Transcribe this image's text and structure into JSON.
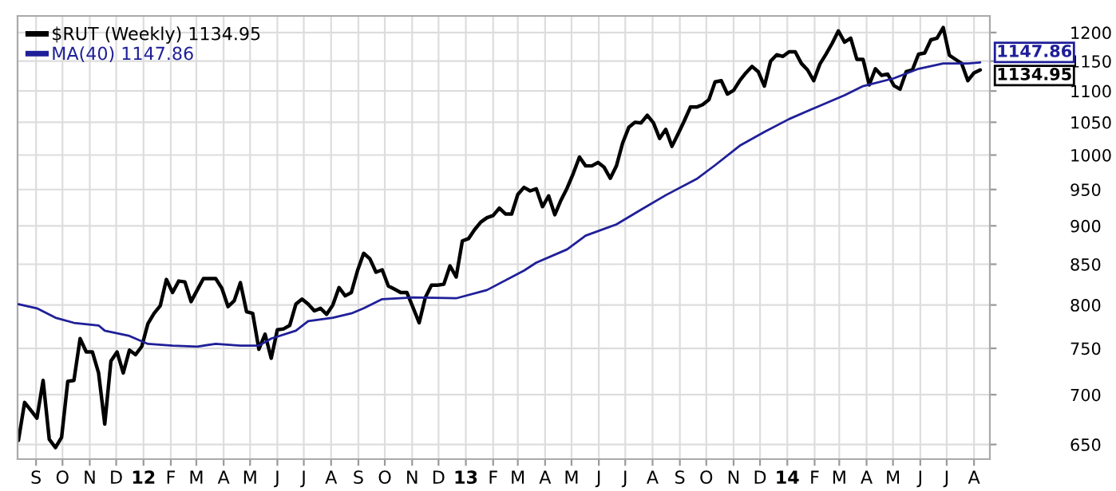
{
  "chart_data": {
    "type": "line",
    "log": "y",
    "grid": true,
    "legend": "top left",
    "ylim": [
      636,
      1230
    ],
    "yticks": [
      650,
      700,
      750,
      800,
      850,
      900,
      950,
      1000,
      1050,
      1100,
      1150,
      1200
    ],
    "xlim": [
      "2011-08-11",
      "2014-08-19"
    ],
    "xticks": [
      {
        "value": "2011-09-01",
        "label": "S"
      },
      {
        "value": "2011-10-01",
        "label": "O"
      },
      {
        "value": "2011-11-01",
        "label": "N"
      },
      {
        "value": "2011-12-01",
        "label": "D"
      },
      {
        "value": "2012-01-01",
        "label": "12"
      },
      {
        "value": "2012-02-01",
        "label": "F"
      },
      {
        "value": "2012-03-01",
        "label": "M"
      },
      {
        "value": "2012-04-01",
        "label": "A"
      },
      {
        "value": "2012-05-01",
        "label": "M"
      },
      {
        "value": "2012-06-01",
        "label": "J"
      },
      {
        "value": "2012-07-01",
        "label": "J"
      },
      {
        "value": "2012-08-01",
        "label": "A"
      },
      {
        "value": "2012-09-01",
        "label": "S"
      },
      {
        "value": "2012-10-01",
        "label": "O"
      },
      {
        "value": "2012-11-01",
        "label": "N"
      },
      {
        "value": "2012-12-01",
        "label": "D"
      },
      {
        "value": "2013-01-01",
        "label": "13"
      },
      {
        "value": "2013-02-01",
        "label": "F"
      },
      {
        "value": "2013-03-01",
        "label": "M"
      },
      {
        "value": "2013-04-01",
        "label": "A"
      },
      {
        "value": "2013-05-01",
        "label": "M"
      },
      {
        "value": "2013-06-01",
        "label": "J"
      },
      {
        "value": "2013-07-01",
        "label": "J"
      },
      {
        "value": "2013-08-01",
        "label": "A"
      },
      {
        "value": "2013-09-01",
        "label": "S"
      },
      {
        "value": "2013-10-01",
        "label": "O"
      },
      {
        "value": "2013-11-01",
        "label": "N"
      },
      {
        "value": "2013-12-01",
        "label": "D"
      },
      {
        "value": "2014-01-01",
        "label": "14"
      },
      {
        "value": "2014-02-01",
        "label": "F"
      },
      {
        "value": "2014-03-01",
        "label": "M"
      },
      {
        "value": "2014-04-01",
        "label": "A"
      },
      {
        "value": "2014-05-01",
        "label": "M"
      },
      {
        "value": "2014-06-01",
        "label": "J"
      },
      {
        "value": "2014-07-01",
        "label": "J"
      },
      {
        "value": "2014-08-01",
        "label": "A"
      }
    ],
    "annotations": [
      {
        "text": "1147.86",
        "x": "2014-08-08",
        "y": 1147.86
      },
      {
        "text": "1134.95",
        "x": "2014-08-08",
        "y": 1134.95
      }
    ],
    "series": [
      {
        "name": "$RUT (Weekly) 1134.95",
        "color": "#000000",
        "x": [
          "2011-08-12",
          "2011-08-19",
          "2011-08-26",
          "2011-09-02",
          "2011-09-09",
          "2011-09-16",
          "2011-09-23",
          "2011-09-30",
          "2011-10-07",
          "2011-10-14",
          "2011-10-21",
          "2011-10-28",
          "2011-11-04",
          "2011-11-11",
          "2011-11-18",
          "2011-11-25",
          "2011-12-02",
          "2011-12-09",
          "2011-12-16",
          "2011-12-23",
          "2011-12-30",
          "2012-01-06",
          "2012-01-13",
          "2012-01-20",
          "2012-01-27",
          "2012-02-03",
          "2012-02-10",
          "2012-02-17",
          "2012-02-24",
          "2012-03-02",
          "2012-03-09",
          "2012-03-16",
          "2012-03-23",
          "2012-03-30",
          "2012-04-06",
          "2012-04-13",
          "2012-04-20",
          "2012-04-27",
          "2012-05-04",
          "2012-05-11",
          "2012-05-18",
          "2012-05-25",
          "2012-06-01",
          "2012-06-08",
          "2012-06-15",
          "2012-06-22",
          "2012-06-29",
          "2012-07-06",
          "2012-07-13",
          "2012-07-20",
          "2012-07-27",
          "2012-08-03",
          "2012-08-10",
          "2012-08-17",
          "2012-08-24",
          "2012-08-31",
          "2012-09-07",
          "2012-09-14",
          "2012-09-21",
          "2012-09-28",
          "2012-10-05",
          "2012-10-12",
          "2012-10-19",
          "2012-10-26",
          "2012-11-02",
          "2012-11-09",
          "2012-11-16",
          "2012-11-23",
          "2012-11-30",
          "2012-12-07",
          "2012-12-14",
          "2012-12-21",
          "2012-12-28",
          "2013-01-04",
          "2013-01-11",
          "2013-01-18",
          "2013-01-25",
          "2013-02-01",
          "2013-02-08",
          "2013-02-15",
          "2013-02-22",
          "2013-03-01",
          "2013-03-08",
          "2013-03-15",
          "2013-03-22",
          "2013-03-29",
          "2013-04-05",
          "2013-04-12",
          "2013-04-19",
          "2013-04-26",
          "2013-05-03",
          "2013-05-10",
          "2013-05-17",
          "2013-05-24",
          "2013-05-31",
          "2013-06-07",
          "2013-06-14",
          "2013-06-21",
          "2013-06-28",
          "2013-07-05",
          "2013-07-12",
          "2013-07-19",
          "2013-07-26",
          "2013-08-02",
          "2013-08-09",
          "2013-08-16",
          "2013-08-23",
          "2013-08-30",
          "2013-09-06",
          "2013-09-13",
          "2013-09-20",
          "2013-09-27",
          "2013-10-04",
          "2013-10-11",
          "2013-10-18",
          "2013-10-25",
          "2013-11-01",
          "2013-11-08",
          "2013-11-15",
          "2013-11-22",
          "2013-11-29",
          "2013-12-06",
          "2013-12-13",
          "2013-12-20",
          "2013-12-27",
          "2014-01-03",
          "2014-01-10",
          "2014-01-17",
          "2014-01-24",
          "2014-01-31",
          "2014-02-07",
          "2014-02-14",
          "2014-02-21",
          "2014-02-28",
          "2014-03-07",
          "2014-03-14",
          "2014-03-21",
          "2014-03-28",
          "2014-04-04",
          "2014-04-11",
          "2014-04-18",
          "2014-04-25",
          "2014-05-02",
          "2014-05-09",
          "2014-05-16",
          "2014-05-23",
          "2014-05-30",
          "2014-06-06",
          "2014-06-13",
          "2014-06-20",
          "2014-06-27",
          "2014-07-04",
          "2014-07-11",
          "2014-07-18",
          "2014-07-25",
          "2014-08-01",
          "2014-08-08"
        ],
        "values": [
          654,
          692,
          684,
          676,
          715,
          655,
          647,
          657,
          714,
          715,
          761,
          746,
          746,
          723,
          670,
          736,
          746,
          723,
          748,
          743,
          752,
          778,
          790,
          799,
          831,
          815,
          829,
          828,
          804,
          818,
          832,
          832,
          832,
          820,
          798,
          805,
          827,
          792,
          790,
          749,
          766,
          739,
          771,
          772,
          776,
          801,
          807,
          801,
          793,
          796,
          789,
          800,
          821,
          811,
          815,
          842,
          864,
          857,
          840,
          843,
          823,
          819,
          815,
          815,
          797,
          779,
          809,
          824,
          824,
          825,
          848,
          834,
          880,
          883,
          895,
          905,
          911,
          914,
          924,
          916,
          916,
          943,
          953,
          948,
          951,
          926,
          941,
          915,
          935,
          952,
          973,
          997,
          984,
          984,
          989,
          982,
          966,
          984,
          1018,
          1042,
          1050,
          1049,
          1061,
          1049,
          1025,
          1039,
          1013,
          1032,
          1052,
          1074,
          1074,
          1078,
          1086,
          1115,
          1117,
          1095,
          1101,
          1117,
          1130,
          1141,
          1132,
          1108,
          1150,
          1161,
          1158,
          1166,
          1166,
          1146,
          1135,
          1117,
          1145,
          1162,
          1181,
          1203,
          1183,
          1190,
          1153,
          1153,
          1110,
          1137,
          1126,
          1128,
          1109,
          1103,
          1132,
          1135,
          1162,
          1164,
          1187,
          1190,
          1209,
          1160,
          1153,
          1146,
          1117,
          1130,
          1134.95
        ]
      },
      {
        "name": "MA(40) 1147.86",
        "color": "#1f1f99",
        "x": [
          "2011-08-12",
          "2011-09-02",
          "2011-09-23",
          "2011-10-14",
          "2011-11-11",
          "2011-11-18",
          "2011-12-16",
          "2012-01-06",
          "2012-02-03",
          "2012-03-02",
          "2012-03-23",
          "2012-04-20",
          "2012-05-11",
          "2012-05-25",
          "2012-06-22",
          "2012-07-06",
          "2012-08-03",
          "2012-08-24",
          "2012-09-07",
          "2012-09-28",
          "2012-11-02",
          "2012-12-21",
          "2013-01-25",
          "2013-03-08",
          "2013-03-22",
          "2013-04-26",
          "2013-05-17",
          "2013-06-21",
          "2013-07-19",
          "2013-08-16",
          "2013-09-20",
          "2013-10-11",
          "2013-11-08",
          "2013-12-06",
          "2014-01-03",
          "2014-01-31",
          "2014-03-07",
          "2014-03-28",
          "2014-05-02",
          "2014-05-30",
          "2014-06-27",
          "2014-07-25",
          "2014-08-08"
        ],
        "values": [
          801,
          796,
          785,
          779,
          776,
          770,
          764,
          755,
          753,
          752,
          755,
          753,
          753,
          761,
          770,
          781,
          785,
          790,
          796,
          807,
          809,
          808,
          818,
          842,
          852,
          869,
          887,
          902,
          922,
          942,
          965,
          985,
          1014,
          1035,
          1055,
          1072,
          1093,
          1108,
          1121,
          1137,
          1146,
          1146,
          1147.86
        ]
      }
    ]
  }
}
